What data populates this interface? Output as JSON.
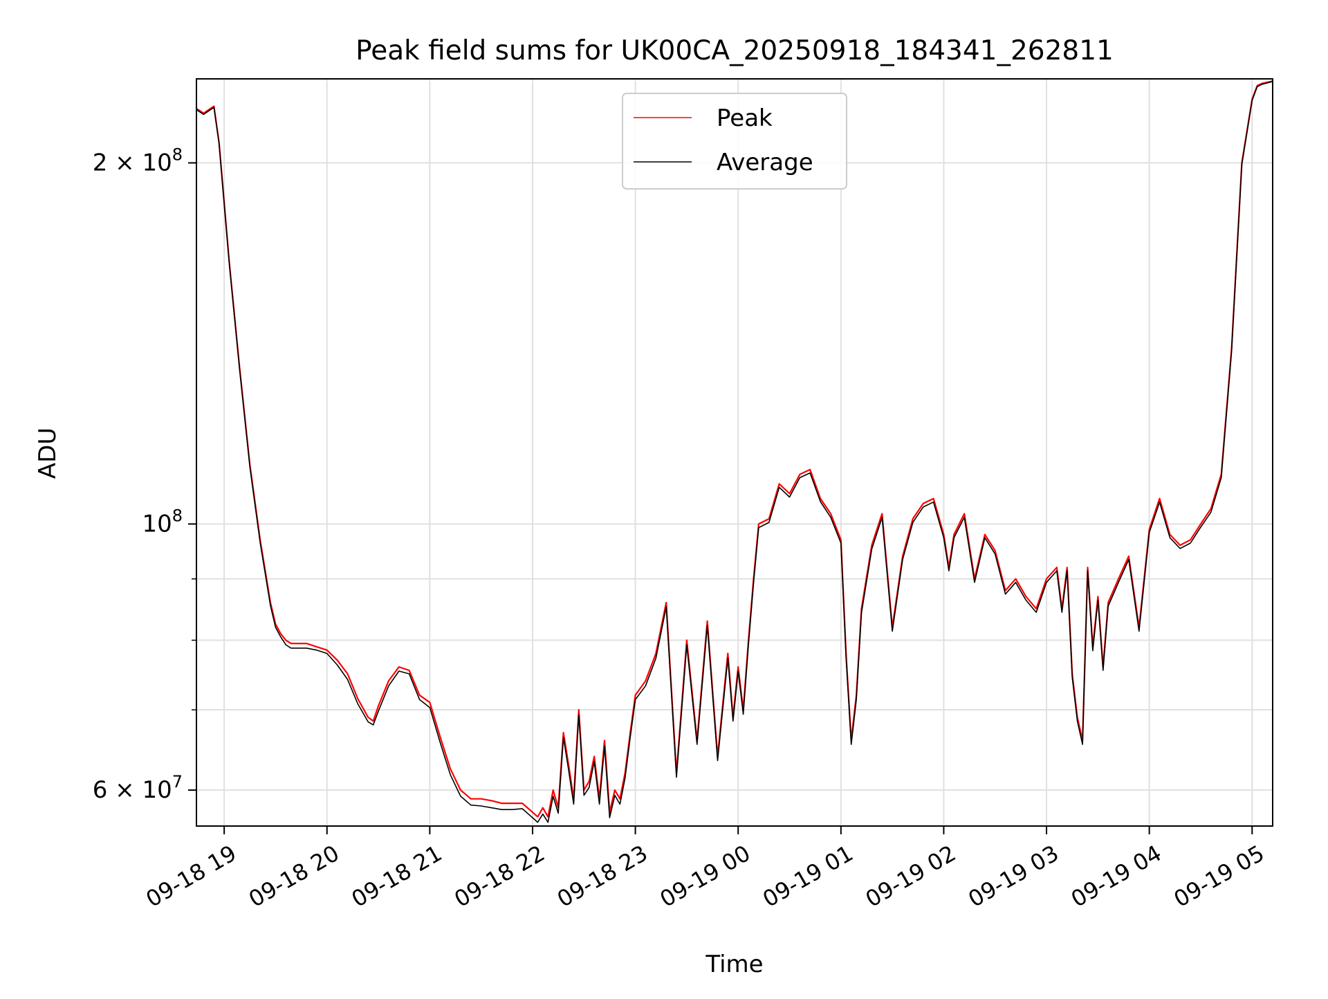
{
  "chart_data": {
    "type": "line",
    "title": "Peak field sums for UK00CA_20250918_184341_262811",
    "xlabel": "Time",
    "ylabel": "ADU",
    "yscale": "log",
    "xlim": [
      -0.27,
      10.2
    ],
    "ylim": [
      56000000,
      235000000
    ],
    "x_unit": "hours after 09-18 19:00",
    "x_ticks": [
      {
        "value": 0,
        "label": "09-18 19"
      },
      {
        "value": 1,
        "label": "09-18 20"
      },
      {
        "value": 2,
        "label": "09-18 21"
      },
      {
        "value": 3,
        "label": "09-18 22"
      },
      {
        "value": 4,
        "label": "09-18 23"
      },
      {
        "value": 5,
        "label": "09-19 00"
      },
      {
        "value": 6,
        "label": "09-19 01"
      },
      {
        "value": 7,
        "label": "09-19 02"
      },
      {
        "value": 8,
        "label": "09-19 03"
      },
      {
        "value": 9,
        "label": "09-19 04"
      },
      {
        "value": 10,
        "label": "09-19 05"
      }
    ],
    "y_major_ticks": [
      {
        "value": 60000000,
        "mantissa": "6",
        "exponent": "7"
      },
      {
        "value": 100000000,
        "mantissa": "",
        "exponent": "8"
      },
      {
        "value": 200000000,
        "mantissa": "2",
        "exponent": "8"
      }
    ],
    "y_minor_ticks": [
      70000000,
      80000000,
      90000000
    ],
    "grid": true,
    "legend_position": "top-center",
    "series": [
      {
        "name": "Peak",
        "color": "#ff0000",
        "x": [
          -0.27,
          -0.2,
          -0.1,
          -0.05,
          0.05,
          0.15,
          0.25,
          0.35,
          0.45,
          0.5,
          0.55,
          0.6,
          0.65,
          0.7,
          0.8,
          0.9,
          1.0,
          1.1,
          1.2,
          1.3,
          1.4,
          1.45,
          1.5,
          1.6,
          1.7,
          1.8,
          1.9,
          2.0,
          2.1,
          2.2,
          2.3,
          2.4,
          2.5,
          2.6,
          2.7,
          2.8,
          2.9,
          3.0,
          3.05,
          3.1,
          3.15,
          3.2,
          3.25,
          3.3,
          3.35,
          3.4,
          3.45,
          3.5,
          3.55,
          3.6,
          3.65,
          3.7,
          3.75,
          3.8,
          3.85,
          3.9,
          3.95,
          4.0,
          4.1,
          4.2,
          4.3,
          4.4,
          4.5,
          4.6,
          4.7,
          4.8,
          4.9,
          4.95,
          5.0,
          5.05,
          5.1,
          5.15,
          5.2,
          5.3,
          5.4,
          5.5,
          5.6,
          5.7,
          5.8,
          5.9,
          6.0,
          6.05,
          6.1,
          6.15,
          6.2,
          6.3,
          6.4,
          6.5,
          6.6,
          6.7,
          6.8,
          6.9,
          7.0,
          7.05,
          7.1,
          7.2,
          7.3,
          7.4,
          7.5,
          7.6,
          7.7,
          7.8,
          7.9,
          8.0,
          8.1,
          8.15,
          8.2,
          8.25,
          8.3,
          8.35,
          8.4,
          8.45,
          8.5,
          8.55,
          8.6,
          8.7,
          8.8,
          8.9,
          9.0,
          9.1,
          9.2,
          9.3,
          9.4,
          9.5,
          9.6,
          9.7,
          9.8,
          9.9,
          10.0,
          10.05,
          10.1,
          10.2
        ],
        "y": [
          222000000,
          220000000,
          223000000,
          208000000,
          165000000,
          135000000,
          112000000,
          97000000,
          86000000,
          82500000,
          81000000,
          80000000,
          79500000,
          79500000,
          79500000,
          79000000,
          78500000,
          77000000,
          75000000,
          71500000,
          69000000,
          68500000,
          70500000,
          74000000,
          76000000,
          75500000,
          72000000,
          71000000,
          66500000,
          62500000,
          60000000,
          59000000,
          59000000,
          58800000,
          58500000,
          58500000,
          58500000,
          57500000,
          57000000,
          58000000,
          57000000,
          60000000,
          58000000,
          67000000,
          63000000,
          59000000,
          70000000,
          60000000,
          61000000,
          64000000,
          59000000,
          66000000,
          57500000,
          60000000,
          59000000,
          62000000,
          67000000,
          72000000,
          74000000,
          78000000,
          86000000,
          62000000,
          80000000,
          66000000,
          83000000,
          64000000,
          78000000,
          69000000,
          76000000,
          70000000,
          80000000,
          90000000,
          100000000,
          101000000,
          108000000,
          106000000,
          110000000,
          111000000,
          105000000,
          102000000,
          97000000,
          78000000,
          66000000,
          72000000,
          85000000,
          96000000,
          102000000,
          82000000,
          94000000,
          101000000,
          104000000,
          105000000,
          98000000,
          92000000,
          98000000,
          102000000,
          90000000,
          98000000,
          95000000,
          88000000,
          90000000,
          87000000,
          85000000,
          90000000,
          92000000,
          85000000,
          92000000,
          75000000,
          69000000,
          66000000,
          92000000,
          79000000,
          87000000,
          76000000,
          86000000,
          90000000,
          94000000,
          82000000,
          99000000,
          105000000,
          98000000,
          96000000,
          97000000,
          100000000,
          103000000,
          110000000,
          140000000,
          200000000,
          226000000,
          232000000,
          233000000,
          234000000
        ]
      },
      {
        "name": "Average",
        "color": "#000000",
        "x": [
          -0.27,
          -0.2,
          -0.1,
          -0.05,
          0.05,
          0.15,
          0.25,
          0.35,
          0.45,
          0.5,
          0.55,
          0.6,
          0.65,
          0.7,
          0.8,
          0.9,
          1.0,
          1.1,
          1.2,
          1.3,
          1.4,
          1.45,
          1.5,
          1.6,
          1.7,
          1.8,
          1.9,
          2.0,
          2.1,
          2.2,
          2.3,
          2.4,
          2.5,
          2.6,
          2.7,
          2.8,
          2.9,
          3.0,
          3.05,
          3.1,
          3.15,
          3.2,
          3.25,
          3.3,
          3.35,
          3.4,
          3.45,
          3.5,
          3.55,
          3.6,
          3.65,
          3.7,
          3.75,
          3.8,
          3.85,
          3.9,
          3.95,
          4.0,
          4.1,
          4.2,
          4.3,
          4.4,
          4.5,
          4.6,
          4.7,
          4.8,
          4.9,
          4.95,
          5.0,
          5.05,
          5.1,
          5.15,
          5.2,
          5.3,
          5.4,
          5.5,
          5.6,
          5.7,
          5.8,
          5.9,
          6.0,
          6.05,
          6.1,
          6.15,
          6.2,
          6.3,
          6.4,
          6.5,
          6.6,
          6.7,
          6.8,
          6.9,
          7.0,
          7.05,
          7.1,
          7.2,
          7.3,
          7.4,
          7.5,
          7.6,
          7.7,
          7.8,
          7.9,
          8.0,
          8.1,
          8.15,
          8.2,
          8.25,
          8.3,
          8.35,
          8.4,
          8.45,
          8.5,
          8.55,
          8.6,
          8.7,
          8.8,
          8.9,
          9.0,
          9.1,
          9.2,
          9.3,
          9.4,
          9.5,
          9.6,
          9.7,
          9.8,
          9.9,
          10.0,
          10.05,
          10.1,
          10.2
        ],
        "y": [
          221500000,
          219500000,
          222500000,
          207500000,
          164500000,
          134500000,
          111500000,
          96500000,
          85500000,
          82000000,
          80500000,
          79300000,
          78800000,
          78800000,
          78800000,
          78500000,
          78000000,
          76300000,
          74200000,
          70800000,
          68400000,
          68000000,
          69800000,
          73300000,
          75400000,
          75000000,
          71400000,
          70300000,
          65800000,
          61800000,
          59300000,
          58300000,
          58200000,
          58000000,
          57800000,
          57800000,
          57900000,
          56900000,
          56400000,
          57300000,
          56400000,
          59300000,
          57400000,
          66400000,
          62400000,
          58400000,
          69300000,
          59400000,
          60300000,
          63400000,
          58400000,
          65300000,
          56900000,
          59400000,
          58400000,
          61400000,
          66400000,
          71400000,
          73300000,
          77300000,
          85300000,
          61500000,
          79300000,
          65500000,
          82300000,
          63500000,
          77300000,
          68500000,
          75400000,
          69400000,
          79300000,
          89300000,
          99300000,
          100300000,
          107300000,
          105300000,
          109300000,
          110300000,
          104400000,
          101300000,
          96400000,
          77400000,
          65500000,
          71400000,
          84300000,
          95300000,
          101300000,
          81400000,
          93400000,
          100300000,
          103300000,
          104300000,
          97400000,
          91400000,
          97400000,
          101300000,
          89400000,
          97400000,
          94400000,
          87400000,
          89400000,
          86400000,
          84400000,
          89400000,
          91400000,
          84400000,
          91400000,
          74500000,
          68500000,
          65500000,
          91400000,
          78400000,
          86400000,
          75500000,
          85400000,
          89400000,
          93400000,
          81400000,
          98400000,
          104300000,
          97400000,
          95400000,
          96400000,
          99400000,
          102300000,
          109300000,
          139300000,
          199300000,
          225500000,
          231500000,
          232600000,
          233800000
        ]
      }
    ]
  }
}
